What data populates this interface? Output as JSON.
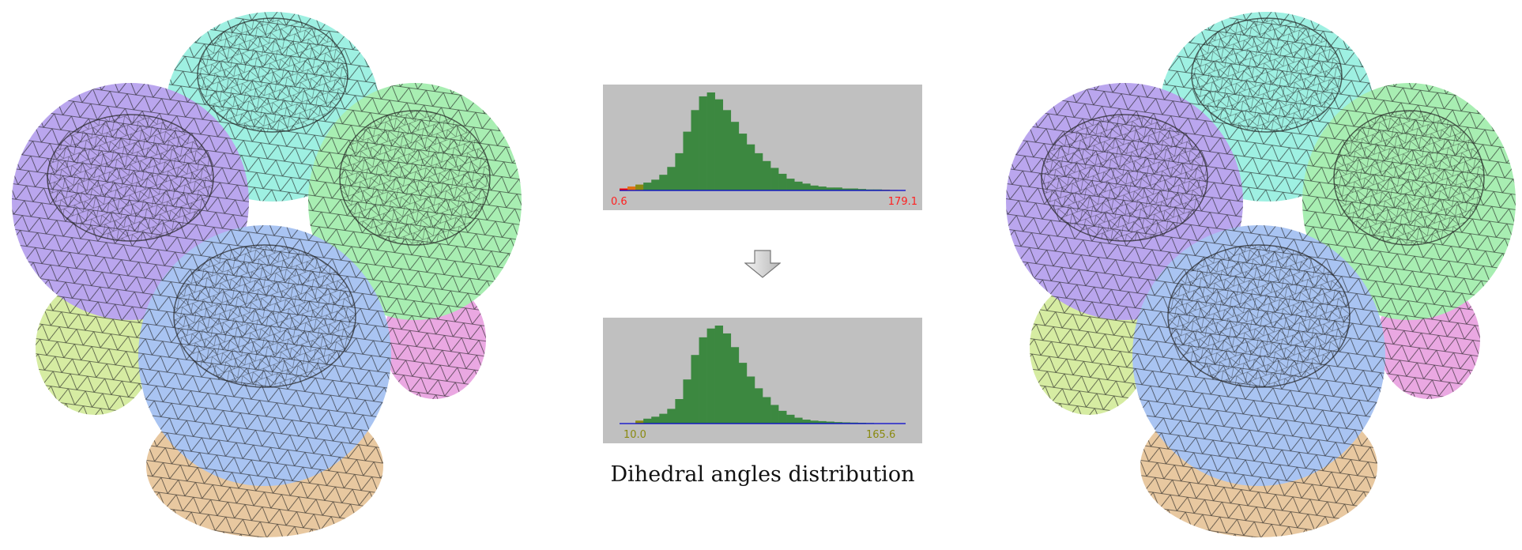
{
  "caption": "Dihedral angles distribution",
  "colors": {
    "hist_bg": "#c0c0c0",
    "bar": "#3c8840",
    "axis": "#0000cc",
    "bad": "#ff0000",
    "warn": "#e07010",
    "ok_edge": "#8a8a10",
    "label_before": "#ff2020",
    "label_after": "#8a8a10",
    "regions": {
      "cyan": "#9ef0e2",
      "purple": "#baa6ee",
      "green": "#a8eeb2",
      "blue": "#a9c4f2",
      "lime": "#d6eca2",
      "tan": "#e8c8a0",
      "pink": "#eaa8e2"
    }
  },
  "icons": {
    "arrow": "down-arrow-icon"
  },
  "chart_data": [
    {
      "type": "bar",
      "name_hint": "before",
      "xlim": [
        0,
        180
      ],
      "min_label": "0.6",
      "max_label": "179.1",
      "bin_width": 5,
      "bin_start": 0,
      "values": [
        2,
        4,
        6,
        8,
        11,
        16,
        24,
        38,
        60,
        82,
        96,
        100,
        93,
        82,
        70,
        58,
        47,
        38,
        30,
        23,
        17,
        12,
        9,
        7,
        5,
        4,
        3,
        3,
        2,
        2,
        1.5,
        1,
        1,
        0.8,
        0.5,
        0.3
      ]
    },
    {
      "type": "bar",
      "name_hint": "after",
      "xlim": [
        0,
        180
      ],
      "min_label": "10.0",
      "max_label": "165.6",
      "bin_width": 5,
      "bin_start": 10,
      "values": [
        3,
        5,
        7,
        10,
        15,
        25,
        45,
        70,
        88,
        97,
        100,
        92,
        78,
        62,
        48,
        36,
        27,
        19,
        13,
        9,
        6,
        4,
        3,
        2.5,
        2,
        1.5,
        1.2,
        1,
        0.8,
        0.6,
        0.4
      ]
    }
  ]
}
